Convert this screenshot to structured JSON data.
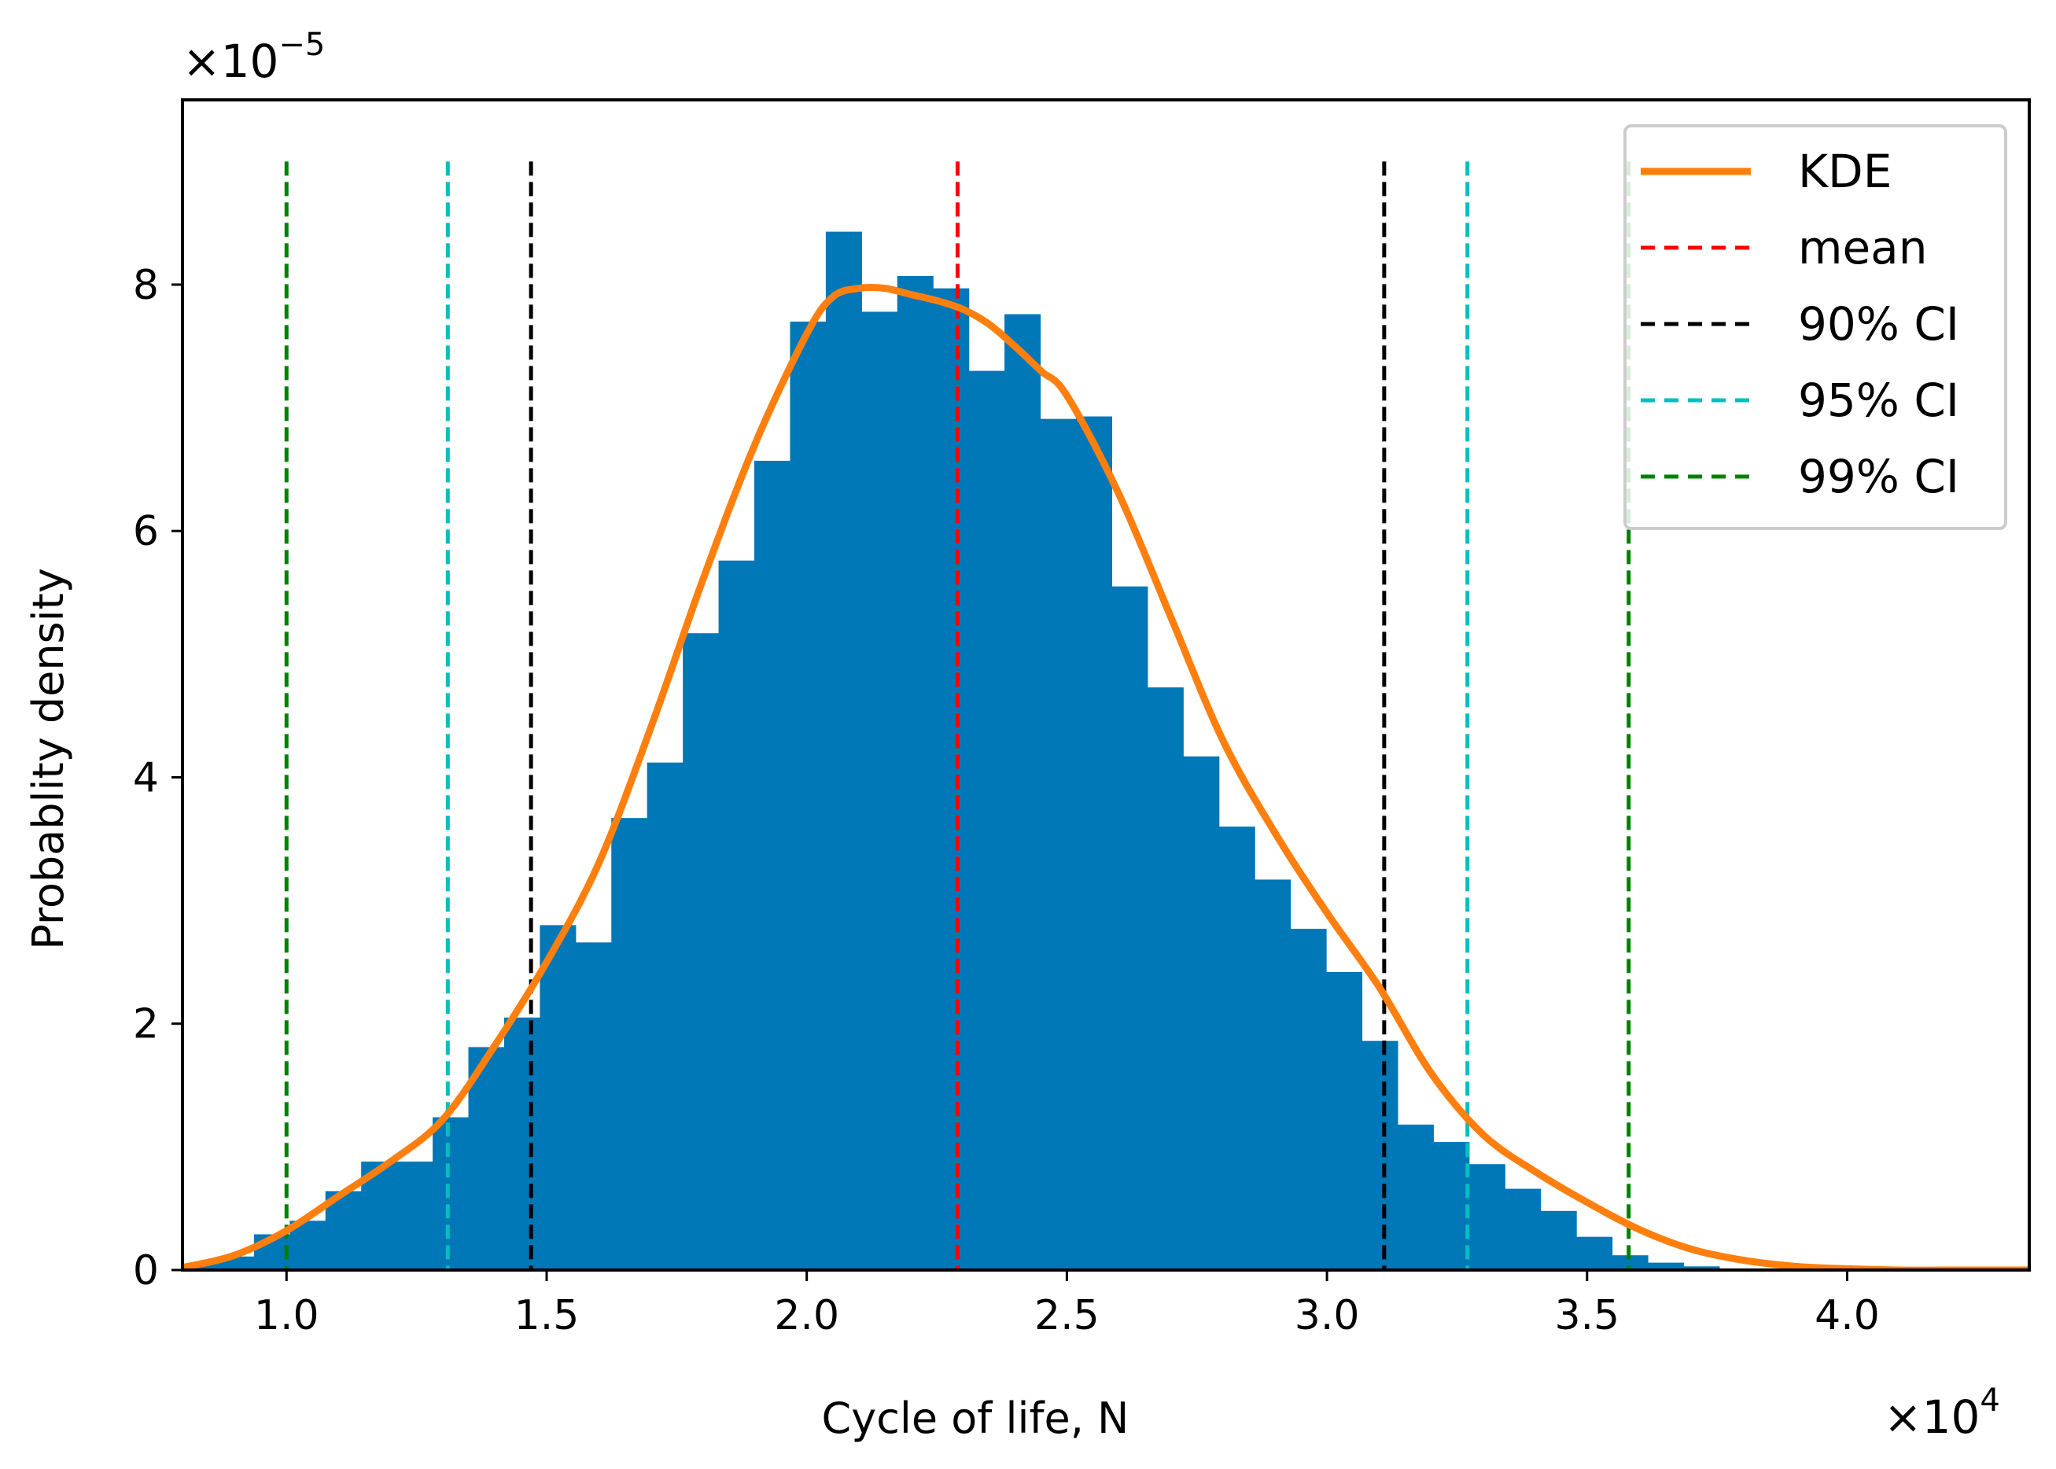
{
  "chart_data": {
    "type": "bar",
    "title": "",
    "xlabel": "Cycle of life, N",
    "ylabel": "Probablity density",
    "x_scale_label": "×10",
    "x_scale_exp": "4",
    "y_scale_label": "×10",
    "y_scale_exp": "−5",
    "xlim": [
      0.8,
      4.35
    ],
    "ylim": [
      0,
      9.5
    ],
    "x_ticks": [
      1.0,
      1.5,
      2.0,
      2.5,
      3.0,
      3.5,
      4.0
    ],
    "x_tick_labels": [
      "1.0",
      "1.5",
      "2.0",
      "2.5",
      "3.0",
      "3.5",
      "4.0"
    ],
    "y_ticks": [
      0,
      2,
      4,
      6,
      8
    ],
    "y_tick_labels": [
      "0",
      "2",
      "4",
      "6",
      "8"
    ],
    "bin_width": 0.0687,
    "bin_edges_start": 0.8,
    "histogram": [
      0.05,
      0.11,
      0.29,
      0.4,
      0.64,
      0.88,
      0.88,
      1.24,
      1.81,
      2.05,
      2.8,
      2.66,
      3.67,
      4.12,
      5.17,
      5.76,
      6.57,
      7.7,
      8.43,
      7.78,
      8.07,
      7.97,
      7.3,
      7.76,
      6.91,
      6.93,
      5.55,
      4.73,
      4.17,
      3.6,
      3.17,
      2.77,
      2.42,
      1.86,
      1.18,
      1.04,
      0.86,
      0.66,
      0.48,
      0.27,
      0.12,
      0.06,
      0.03,
      0.01,
      0.01,
      0.0,
      0.0,
      0.0,
      0.0,
      0.0,
      0.0,
      0.0
    ],
    "series": [
      {
        "name": "KDE",
        "color": "#ff7f0e",
        "x": [
          0.8,
          0.9,
          1.0,
          1.1,
          1.2,
          1.3,
          1.4,
          1.5,
          1.6,
          1.7,
          1.8,
          1.9,
          2.0,
          2.05,
          2.1,
          2.15,
          2.2,
          2.25,
          2.3,
          2.35,
          2.4,
          2.45,
          2.5,
          2.6,
          2.7,
          2.8,
          2.9,
          3.0,
          3.1,
          3.2,
          3.3,
          3.4,
          3.5,
          3.6,
          3.7,
          3.8,
          3.9,
          4.0,
          4.1,
          4.2,
          4.35
        ],
        "y": [
          0.02,
          0.12,
          0.32,
          0.6,
          0.88,
          1.22,
          1.82,
          2.5,
          3.3,
          4.4,
          5.6,
          6.7,
          7.6,
          7.9,
          7.97,
          7.97,
          7.92,
          7.87,
          7.8,
          7.68,
          7.5,
          7.3,
          7.1,
          6.3,
          5.3,
          4.3,
          3.55,
          2.9,
          2.3,
          1.6,
          1.1,
          0.8,
          0.55,
          0.33,
          0.17,
          0.08,
          0.03,
          0.01,
          0.0,
          0.0,
          0.0
        ]
      }
    ],
    "vlines": [
      {
        "name": "mean",
        "color": "#ff0000",
        "x": [
          2.29
        ]
      },
      {
        "name": "90% CI",
        "color": "#000000",
        "x": [
          1.47,
          3.11
        ]
      },
      {
        "name": "95% CI",
        "color": "#00bfbf",
        "x": [
          1.31,
          3.27
        ]
      },
      {
        "name": "99% CI",
        "color": "#008000",
        "x": [
          1.0,
          3.58
        ]
      }
    ],
    "vline_top": 9.0,
    "legend": [
      {
        "label": "KDE",
        "color": "#ff7f0e",
        "style": "solid"
      },
      {
        "label": "mean",
        "color": "#ff0000",
        "style": "dashed"
      },
      {
        "label": "90% CI",
        "color": "#000000",
        "style": "dashed"
      },
      {
        "label": "95% CI",
        "color": "#00bfbf",
        "style": "dashed"
      },
      {
        "label": "99% CI",
        "color": "#008000",
        "style": "dashed"
      }
    ],
    "legend_position": "top-right",
    "bar_color": "#0077b6"
  }
}
